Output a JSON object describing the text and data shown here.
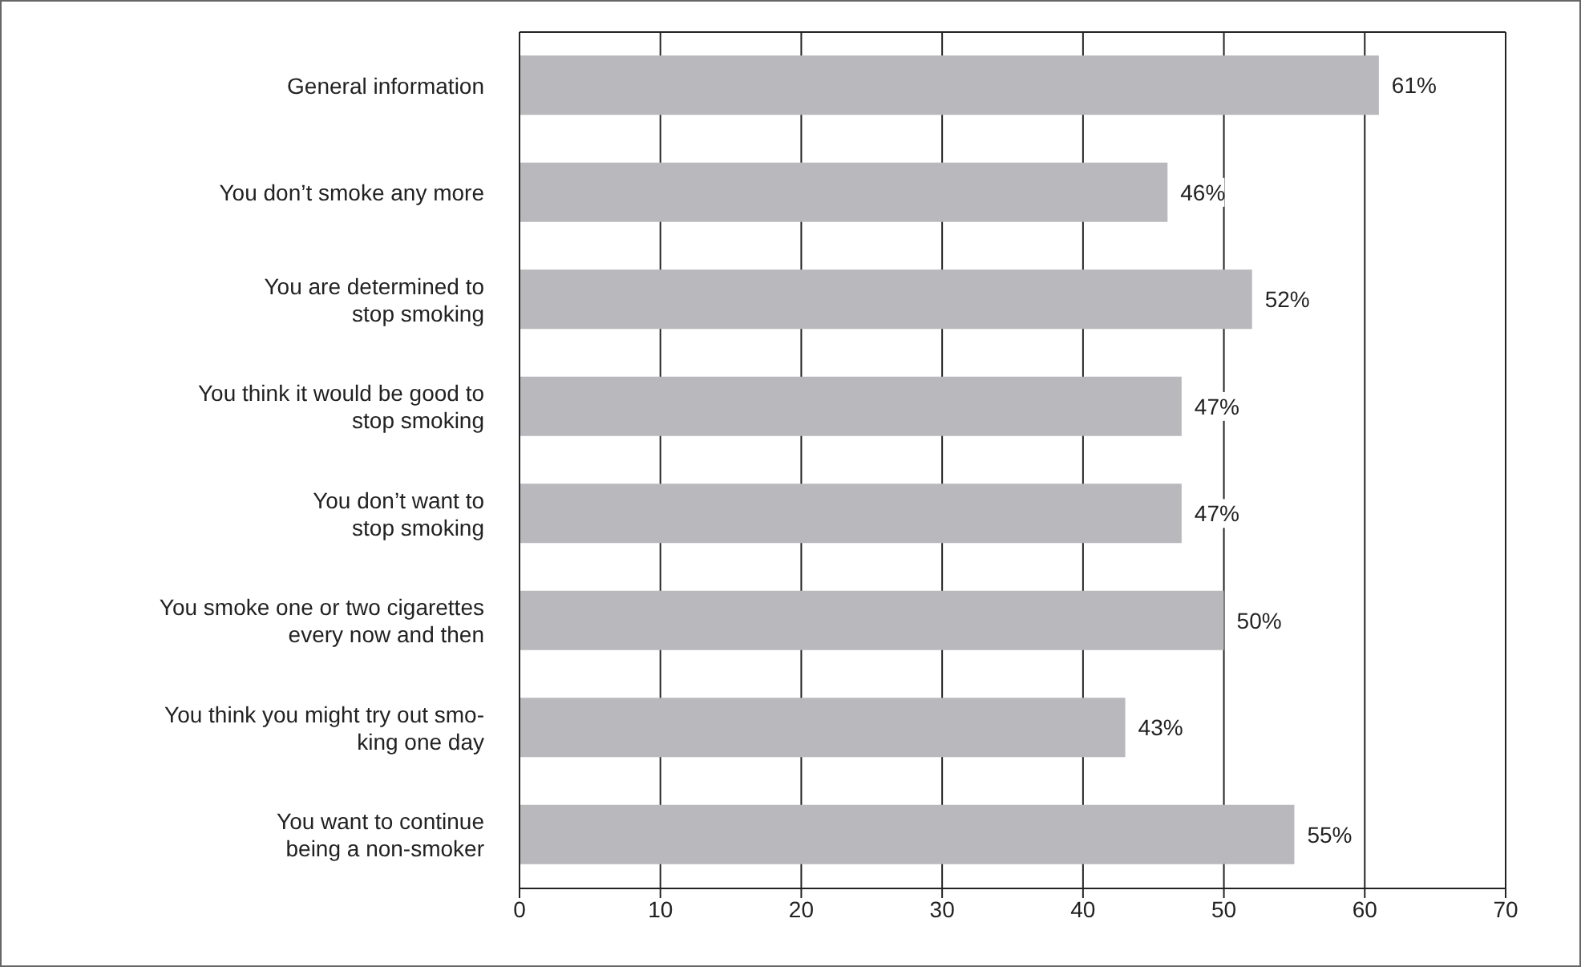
{
  "chart_data": {
    "type": "bar",
    "orientation": "horizontal",
    "categories": [
      "General information",
      "You don’t smoke any more",
      "You are determined to\nstop smoking",
      "You think it would be good to\nstop smoking",
      "You don’t want to\nstop smoking",
      "You smoke one or two cigarettes\nevery now and then",
      "You think you might try out smo-\nking one day",
      "You want to continue\nbeing a non-smoker"
    ],
    "values": [
      61,
      46,
      52,
      47,
      47,
      50,
      43,
      55
    ],
    "value_labels": [
      "61%",
      "46%",
      "52%",
      "47%",
      "47%",
      "50%",
      "43%",
      "55%"
    ],
    "color": "#b9b9bd",
    "xlim": [
      0,
      70
    ],
    "xticks": [
      0,
      10,
      20,
      30,
      40,
      50,
      60,
      70
    ],
    "grid": "x"
  }
}
